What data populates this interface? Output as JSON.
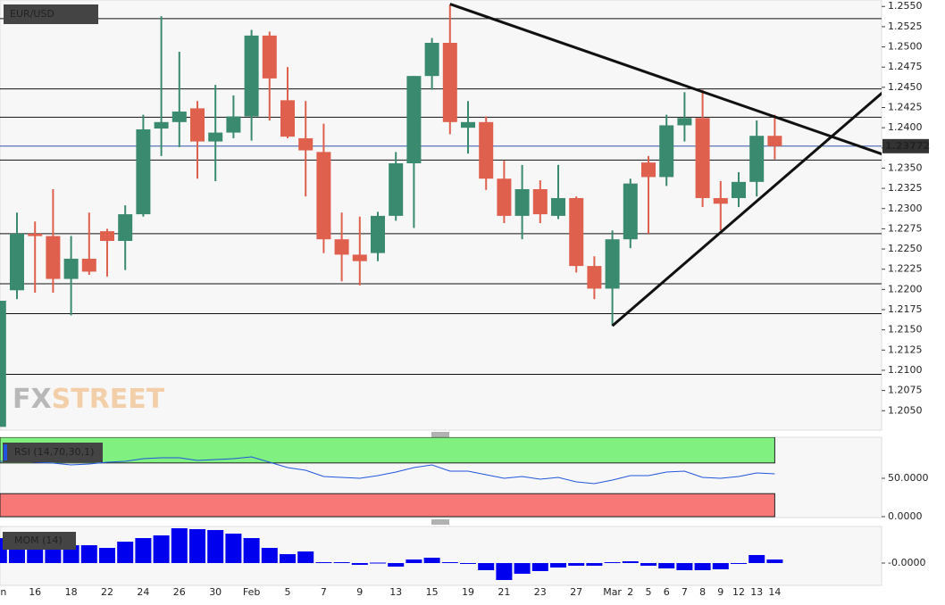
{
  "chart_data": [
    {
      "type": "candlestick",
      "title": "EUR/USD",
      "categories": [
        "Jan",
        null,
        "16",
        null,
        "18",
        null,
        "22",
        null,
        "24",
        null,
        "26",
        null,
        "30",
        null,
        "Feb",
        null,
        "5",
        null,
        "7",
        null,
        "9",
        null,
        "13",
        null,
        "15",
        null,
        "19",
        null,
        "21",
        null,
        "23",
        null,
        "27",
        null,
        "Mar",
        "2",
        "5",
        "6",
        "7",
        "8",
        "9",
        "12",
        "13",
        "14"
      ],
      "open": [
        1.203,
        1.2199,
        1.2269,
        1.2266,
        1.2213,
        1.2238,
        1.2272,
        1.226,
        1.2293,
        1.2399,
        1.2407,
        1.2424,
        1.2383,
        1.2394,
        1.2414,
        1.2514,
        1.2434,
        1.2387,
        1.237,
        1.2262,
        1.2243,
        1.2245,
        1.2291,
        1.2356,
        1.2464,
        1.2505,
        1.24,
        1.2407,
        1.2337,
        1.2291,
        1.2324,
        1.2291,
        1.2313,
        1.2229,
        1.2201,
        1.2262,
        1.2357,
        1.2339,
        1.2403,
        1.2412,
        1.2313,
        1.2313,
        1.2333,
        1.239
      ],
      "high": [
        1.2186,
        1.2295,
        1.2284,
        1.2324,
        1.2266,
        1.2295,
        1.2275,
        1.2304,
        1.2416,
        1.2538,
        1.2494,
        1.2433,
        1.2453,
        1.244,
        1.2521,
        1.2519,
        1.2475,
        1.2433,
        1.2405,
        1.2295,
        1.229,
        1.2296,
        1.237,
        1.2464,
        1.2511,
        1.2552,
        1.2433,
        1.2414,
        1.2359,
        1.2354,
        1.2335,
        1.2354,
        1.2315,
        1.2241,
        1.2273,
        1.2337,
        1.2365,
        1.2416,
        1.2444,
        1.2447,
        1.2334,
        1.2345,
        1.2409,
        1.2416
      ],
      "low": [
        1.203,
        1.2188,
        1.2196,
        1.2196,
        1.2168,
        1.2218,
        1.2216,
        1.2224,
        1.229,
        1.2365,
        1.2376,
        1.2337,
        1.2334,
        1.2387,
        1.2384,
        1.2409,
        1.2387,
        1.2315,
        1.2245,
        1.221,
        1.2205,
        1.2235,
        1.2285,
        1.2276,
        1.2447,
        1.2392,
        1.2368,
        1.2323,
        1.2282,
        1.2262,
        1.2282,
        1.2287,
        1.2221,
        1.2188,
        1.2155,
        1.2251,
        1.2269,
        1.2328,
        1.2383,
        1.2302,
        1.2273,
        1.2302,
        1.2315,
        1.2361
      ],
      "close": [
        1.2186,
        1.2269,
        1.2266,
        1.2213,
        1.2238,
        1.2222,
        1.226,
        1.2293,
        1.2398,
        1.2407,
        1.242,
        1.2383,
        1.2394,
        1.2414,
        1.2514,
        1.2461,
        1.2389,
        1.2372,
        1.2262,
        1.2243,
        1.2235,
        1.2291,
        1.2356,
        1.2464,
        1.2505,
        1.2407,
        1.2407,
        1.2337,
        1.2291,
        1.2324,
        1.2293,
        1.2313,
        1.2229,
        1.2201,
        1.2262,
        1.2331,
        1.2339,
        1.2403,
        1.2412,
        1.2313,
        1.2306,
        1.2333,
        1.239,
        1.23772
      ],
      "up_color": "#3a8a70",
      "down_color": "#e0604e",
      "ylim": [
        1.2026,
        1.2558
      ],
      "yticks": [
        {
          "value": 1.205,
          "label": "1.2050"
        },
        1.2075,
        {
          "value": 1.21,
          "label": "1.2100"
        },
        1.2125,
        {
          "value": 1.215,
          "label": "1.2150"
        },
        1.2175,
        {
          "value": 1.22,
          "label": "1.2200"
        },
        1.2225,
        {
          "value": 1.225,
          "label": "1.2250"
        },
        1.2275,
        {
          "value": 1.23,
          "label": "1.2300"
        },
        1.2325,
        {
          "value": 1.235,
          "label": "1.2350"
        },
        1.2375,
        {
          "value": 1.24,
          "label": "1.2400"
        },
        1.2425,
        {
          "value": 1.245,
          "label": "1.2450"
        },
        1.2475,
        {
          "value": 1.25,
          "label": "1.2500"
        },
        1.2525,
        {
          "value": 1.255,
          "label": "1.2550"
        }
      ],
      "hlines": [
        1.2535,
        1.2448,
        1.2413,
        1.236,
        1.2269,
        1.2207,
        1.217,
        1.2095
      ],
      "current_color": "#3355aa",
      "trendlines": [
        {
          "x": [
            25,
            49
          ],
          "values": [
            1.2553,
            1.2367
          ]
        },
        {
          "x": [
            34,
            49
          ],
          "values": [
            1.2155,
            1.2444
          ]
        }
      ],
      "watermark": [
        "FX",
        "STREET"
      ]
    },
    {
      "type": "line",
      "title": "RSI (14,70,30,1)",
      "values": [
        72.1,
        73.3,
        70.9,
        69.8,
        67.4,
        68.6,
        70.9,
        72.1,
        75.6,
        76.7,
        76.7,
        73.3,
        74.4,
        75.6,
        77.9,
        70.9,
        64.0,
        60.5,
        52.3,
        51.2,
        50.0,
        53.5,
        58.1,
        64.0,
        67.4,
        59.3,
        59.3,
        54.7,
        50.0,
        52.3,
        48.8,
        51.2,
        45.3,
        43.0,
        47.7,
        53.5,
        53.5,
        58.1,
        59.3,
        51.2,
        50.0,
        52.3,
        57.0,
        55.8
      ],
      "color": "#2255dd",
      "ylim": [
        0,
        103.5
      ],
      "yticks": [
        {
          "value": 0,
          "label": "0.0000"
        },
        {
          "value": 50,
          "label": "50.0000"
        }
      ],
      "bands": [
        {
          "from": 70,
          "to": 103.5,
          "color": "#80f080"
        },
        {
          "from": 0,
          "to": 30,
          "color": "#f87878"
        }
      ]
    },
    {
      "type": "bar",
      "title": "MOM (14)",
      "values": [
        0.028,
        0.021,
        0.018,
        0.019,
        0.02,
        0.02,
        0.017,
        0.024,
        0.028,
        0.031,
        0.039,
        0.038,
        0.037,
        0.033,
        0.028,
        0.017,
        0.01,
        0.013,
        0.001,
        0.001,
        -0.002,
        0.0005,
        -0.004,
        0.004,
        0.006,
        0.001,
        -0.0005,
        -0.008,
        -0.019,
        -0.012,
        -0.009,
        -0.005,
        -0.003,
        -0.003,
        0.001,
        0.002,
        -0.003,
        -0.006,
        -0.008,
        -0.008,
        -0.007,
        -0.0005,
        0.009,
        0.004
      ],
      "color": "#0000ee",
      "ylim": [
        -0.024,
        0.041
      ],
      "yticks": [
        {
          "value": 0,
          "label": "-0.0000"
        }
      ]
    }
  ]
}
